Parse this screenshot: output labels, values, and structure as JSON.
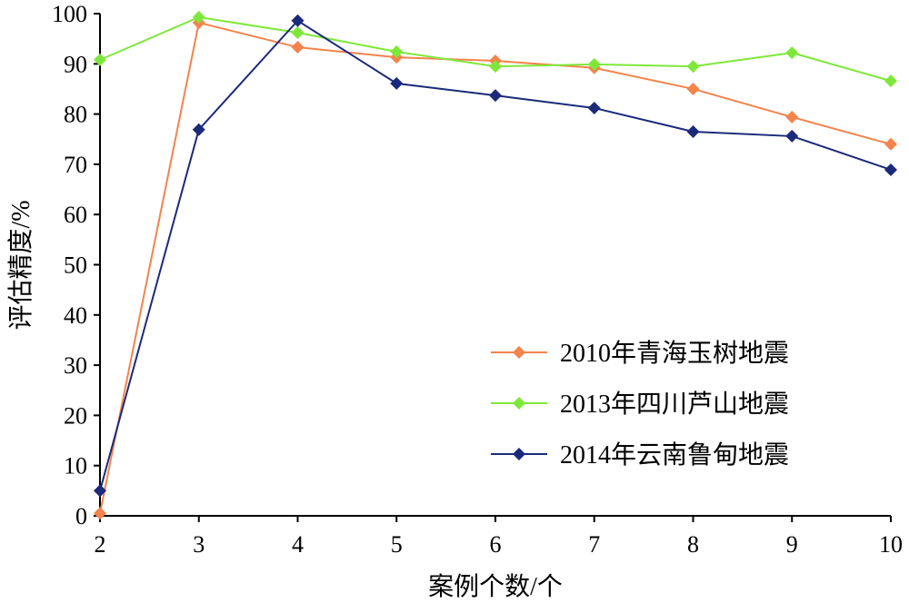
{
  "chart_data": {
    "type": "line",
    "title": "",
    "xlabel": "案例个数/个",
    "ylabel": "评估精度/%",
    "x": [
      2,
      3,
      4,
      5,
      6,
      7,
      8,
      9,
      10
    ],
    "xlim": [
      2,
      10
    ],
    "ylim": [
      0,
      100
    ],
    "yticks": [
      0,
      10,
      20,
      30,
      40,
      50,
      60,
      70,
      80,
      90,
      100
    ],
    "xticks": [
      2,
      3,
      4,
      5,
      6,
      7,
      8,
      9,
      10
    ],
    "grid": false,
    "legend_position": "bottom-right",
    "series": [
      {
        "name": "2010年青海玉树地震",
        "color": "#F4834C",
        "marker": "diamond",
        "values": [
          0.5,
          98.2,
          93.3,
          91.3,
          90.6,
          89.2,
          85.0,
          79.4,
          74.0
        ]
      },
      {
        "name": "2013年四川芦山地震",
        "color": "#7EE83A",
        "marker": "diamond",
        "values": [
          90.8,
          99.3,
          96.2,
          92.4,
          89.5,
          89.9,
          89.5,
          92.2,
          86.6
        ]
      },
      {
        "name": "2014年云南鲁甸地震",
        "color": "#1B2A7A",
        "marker": "diamond",
        "values": [
          5.0,
          76.9,
          98.6,
          86.1,
          83.7,
          81.2,
          76.5,
          75.6,
          68.9
        ]
      }
    ]
  }
}
